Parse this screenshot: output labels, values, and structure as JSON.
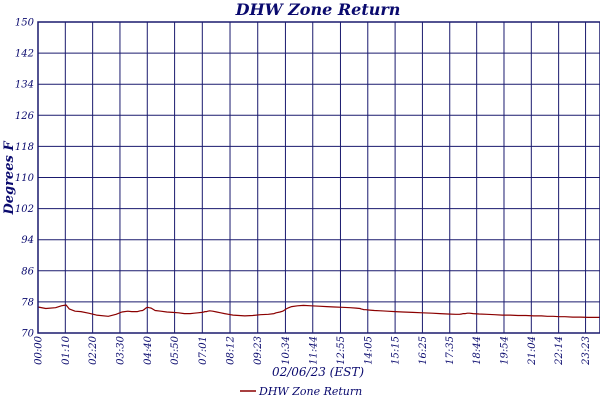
{
  "chart_data": {
    "type": "line",
    "title": "DHW Zone Return",
    "xlabel": "02/06/23 (EST)",
    "ylabel": "Degrees F",
    "ylim": [
      70,
      150
    ],
    "yticks": [
      70,
      78,
      86,
      94,
      102,
      110,
      118,
      126,
      134,
      142,
      150
    ],
    "xlim": [
      0,
      1440
    ],
    "xticks": [
      {
        "t": 0,
        "label": "00:00"
      },
      {
        "t": 70,
        "label": "01:10"
      },
      {
        "t": 140,
        "label": "02:20"
      },
      {
        "t": 210,
        "label": "03:30"
      },
      {
        "t": 280,
        "label": "04:40"
      },
      {
        "t": 350,
        "label": "05:50"
      },
      {
        "t": 421,
        "label": "07:01"
      },
      {
        "t": 492,
        "label": "08:12"
      },
      {
        "t": 563,
        "label": "09:23"
      },
      {
        "t": 634,
        "label": "10:34"
      },
      {
        "t": 704,
        "label": "11:44"
      },
      {
        "t": 775,
        "label": "12:55"
      },
      {
        "t": 845,
        "label": "14:05"
      },
      {
        "t": 915,
        "label": "15:15"
      },
      {
        "t": 985,
        "label": "16:25"
      },
      {
        "t": 1055,
        "label": "17:35"
      },
      {
        "t": 1124,
        "label": "18:44"
      },
      {
        "t": 1194,
        "label": "19:54"
      },
      {
        "t": 1264,
        "label": "21:04"
      },
      {
        "t": 1334,
        "label": "22:14"
      },
      {
        "t": 1403,
        "label": "23:23"
      }
    ],
    "grid": true,
    "legend_position": "bottom",
    "colors": {
      "line": "#8b0000",
      "grid": "#1a1a6e",
      "text": "#0a0a6e"
    },
    "series": [
      {
        "name": "DHW Zone Return",
        "x": [
          0,
          20,
          45,
          60,
          72,
          80,
          95,
          110,
          130,
          150,
          180,
          200,
          215,
          230,
          240,
          255,
          262,
          268,
          271,
          273,
          275,
          278,
          281,
          285,
          290,
          300,
          315,
          330,
          345,
          360,
          375,
          390,
          400,
          410,
          420,
          425,
          428,
          432,
          435,
          440,
          448,
          458,
          468,
          478,
          488,
          500,
          515,
          530,
          550,
          570,
          590,
          605,
          610,
          620,
          627,
          630,
          633,
          636,
          640,
          650,
          665,
          680,
          700,
          720,
          740,
          760,
          780,
          800,
          815,
          825,
          828,
          832,
          835,
          840,
          850,
          862,
          878,
          895,
          915,
          935,
          960,
          985,
          1010,
          1030,
          1050,
          1070,
          1080,
          1085,
          1090,
          1095,
          1100,
          1106,
          1115,
          1130,
          1150,
          1170,
          1190,
          1210,
          1230,
          1250,
          1270,
          1290,
          1305,
          1320,
          1335,
          1350,
          1370,
          1390,
          1410,
          1440
        ],
        "y": [
          76.7,
          76.3,
          76.5,
          77.0,
          77.2,
          76.2,
          75.6,
          75.5,
          75.1,
          74.6,
          74.3,
          74.8,
          75.4,
          75.6,
          75.5,
          75.5,
          75.7,
          75.8,
          76.0,
          76.1,
          76.3,
          76.5,
          76.6,
          76.5,
          76.4,
          75.8,
          75.6,
          75.4,
          75.3,
          75.2,
          75.0,
          75.0,
          75.1,
          75.2,
          75.3,
          75.4,
          75.5,
          75.5,
          75.6,
          75.7,
          75.6,
          75.4,
          75.2,
          75.0,
          74.8,
          74.6,
          74.5,
          74.4,
          74.5,
          74.7,
          74.8,
          75.0,
          75.2,
          75.4,
          75.6,
          75.8,
          76.0,
          76.2,
          76.4,
          76.8,
          77.0,
          77.1,
          77.0,
          76.9,
          76.8,
          76.7,
          76.6,
          76.5,
          76.4,
          76.3,
          76.2,
          76.1,
          76.0,
          76.0,
          75.9,
          75.8,
          75.7,
          75.6,
          75.5,
          75.4,
          75.3,
          75.2,
          75.1,
          75.0,
          74.9,
          74.8,
          74.8,
          74.9,
          75.0,
          75.0,
          75.1,
          75.1,
          75.0,
          74.9,
          74.8,
          74.7,
          74.6,
          74.6,
          74.5,
          74.5,
          74.4,
          74.4,
          74.3,
          74.3,
          74.2,
          74.2,
          74.1,
          74.1,
          74.0,
          74.0
        ]
      }
    ]
  }
}
